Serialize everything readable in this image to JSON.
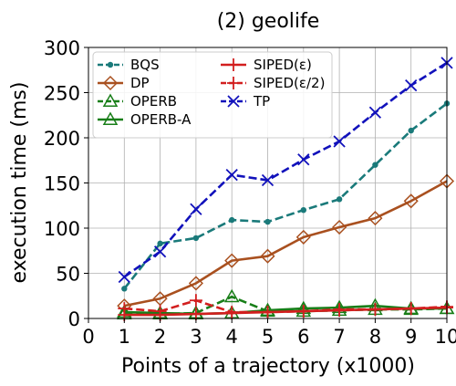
{
  "chart_data": {
    "type": "line",
    "title": "(2) geolife",
    "xlabel": "Points of a trajectory (x1000)",
    "ylabel": "execution time (ms)",
    "xlim": [
      0,
      10
    ],
    "ylim": [
      0,
      300
    ],
    "x_ticks": [
      "0",
      "1",
      "2",
      "3",
      "4",
      "5",
      "6",
      "7",
      "8",
      "9",
      "10"
    ],
    "y_ticks": [
      "0",
      "50",
      "100",
      "150",
      "200",
      "250",
      "300"
    ],
    "grid": true,
    "legend_position": "top-left",
    "x": [
      1,
      2,
      3,
      4,
      5,
      6,
      7,
      8,
      9,
      10
    ],
    "series": [
      {
        "name": "BQS",
        "color": "#1a7a7a",
        "dash": "dashed",
        "marker": "dot",
        "values": [
          33,
          83,
          89,
          109,
          107,
          120,
          132,
          170,
          208,
          238
        ]
      },
      {
        "name": "DP",
        "color": "#a9501f",
        "dash": "solid",
        "marker": "diamond",
        "values": [
          14,
          22,
          39,
          64,
          69,
          90,
          101,
          111,
          130,
          152
        ]
      },
      {
        "name": "OPERB",
        "color": "#187e18",
        "dash": "dashed",
        "marker": "triangle",
        "values": [
          5,
          5,
          6,
          24,
          8,
          8,
          9,
          10,
          10,
          11
        ]
      },
      {
        "name": "OPERB-A",
        "color": "#187e18",
        "dash": "solid",
        "marker": "triangle",
        "values": [
          7,
          6,
          5,
          6,
          9,
          11,
          12,
          14,
          11,
          11
        ]
      },
      {
        "name": "SIPED(ε)",
        "color": "#d21f1f",
        "dash": "solid",
        "marker": "plus",
        "values": [
          4,
          4,
          5,
          6,
          7,
          8,
          9,
          10,
          11,
          12
        ]
      },
      {
        "name": "SIPED(ε/2)",
        "color": "#d21f1f",
        "dash": "dashed",
        "marker": "plus",
        "values": [
          11,
          8,
          20,
          7,
          7,
          8,
          10,
          10,
          11,
          13
        ]
      },
      {
        "name": "TP",
        "color": "#1111bb",
        "dash": "dashed",
        "marker": "x",
        "values": [
          46,
          74,
          121,
          159,
          153,
          176,
          196,
          228,
          258,
          283
        ]
      }
    ]
  }
}
